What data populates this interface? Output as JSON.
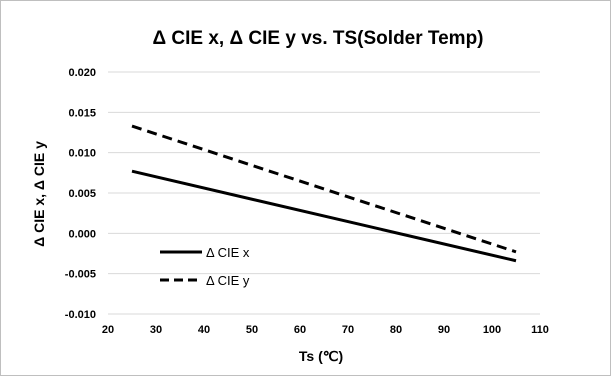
{
  "chart_data": {
    "type": "line",
    "title": "Δ CIE x, Δ CIE y  vs. TS(Solder Temp)",
    "xlabel": "Ts (℃)",
    "ylabel": "Δ CIE x, Δ CIE y",
    "xlim": [
      20,
      110
    ],
    "ylim": [
      -0.01,
      0.02
    ],
    "xticks": [
      "20",
      "30",
      "40",
      "50",
      "60",
      "70",
      "80",
      "90",
      "100",
      "110"
    ],
    "yticks": [
      "0.020",
      "0.015",
      "0.010",
      "0.005",
      "0.000",
      "-0.005",
      "-0.010"
    ],
    "grid": "horizontal",
    "legend_position": "lower-left",
    "series": [
      {
        "name": "Δ CIE x",
        "style": "solid",
        "color": "#000000",
        "x": [
          25,
          105
        ],
        "y": [
          0.0077,
          -0.0034
        ]
      },
      {
        "name": "Δ CIE y",
        "style": "dashed",
        "color": "#000000",
        "x": [
          25,
          105
        ],
        "y": [
          0.0133,
          -0.0023
        ]
      }
    ]
  }
}
